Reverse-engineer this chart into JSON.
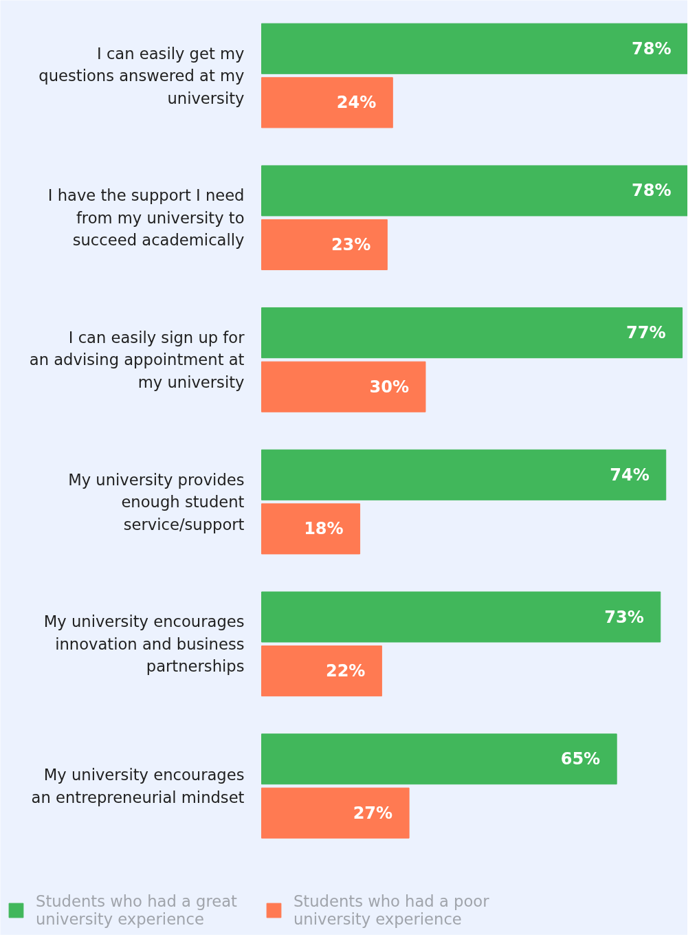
{
  "chart_data": {
    "type": "bar",
    "orientation": "horizontal",
    "legend": "bottom",
    "grid": false,
    "categories": [
      "I can easily get my questions answered at my university",
      "I have the support I need from my university to succeed academically",
      "I can easily sign up for an advising appointment at my university",
      "My university provides enough student service/support",
      "My university encourages innovation and business partnerships",
      "My university encourages an entrepreneurial mindset"
    ],
    "series": [
      {
        "name": "Students who had a great university experience",
        "color": "#41b75b",
        "values": [
          78,
          78,
          77,
          74,
          73,
          65
        ],
        "value_labels": [
          "78%",
          "78%",
          "77%",
          "74%",
          "73%",
          "65%"
        ]
      },
      {
        "name": "Students who had a poor university experience",
        "color": "#ff7a52",
        "values": [
          24,
          23,
          30,
          18,
          22,
          27
        ],
        "value_labels": [
          "24%",
          "23%",
          "30%",
          "18%",
          "22%",
          "27%"
        ]
      }
    ]
  }
}
